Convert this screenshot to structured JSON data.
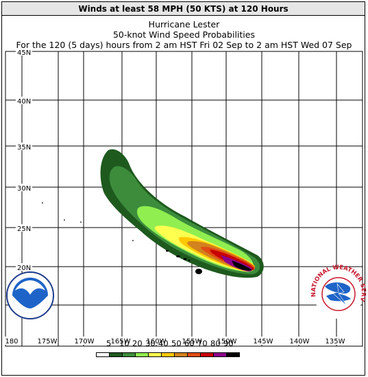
{
  "header": {
    "title": "Winds at least 58 MPH (50 KTS) at 120 Hours"
  },
  "subtitle": {
    "storm": "Hurricane Lester",
    "product": "50-knot Wind Speed Probabilities",
    "period": "For the 120 (5 days) hours from 2 am HST Fri 02 Sep to 2 am HST Wed 07 Sep"
  },
  "axes": {
    "lat_labels": [
      "45N",
      "40N",
      "35N",
      "30N",
      "25N",
      "20N",
      "15N"
    ],
    "lon_labels": [
      "180",
      "175W",
      "170W",
      "165W",
      "160W",
      "155W",
      "150W",
      "145W",
      "140W",
      "135W"
    ],
    "lon_range": [
      -180,
      -133
    ],
    "lat_range": [
      10,
      45
    ]
  },
  "legend": {
    "labels": [
      "5",
      "10",
      "20",
      "30",
      "40",
      "50",
      "60",
      "70",
      "80",
      "90"
    ],
    "colors": [
      "#ffffff",
      "#1e5a1e",
      "#3c8c3c",
      "#90ee50",
      "#ffff50",
      "#ffc800",
      "#d2821e",
      "#e14b14",
      "#c80000",
      "#8c008c",
      "#000000"
    ]
  },
  "logos": {
    "noaa": "NOAA",
    "nws": "NATIONAL WEATHER SERVICE",
    "noaa_ring": "NATIONAL OCEANIC AND ATMOSPHERIC ADMINISTRATION · U.S. DEPARTMENT OF COMMERCE"
  }
}
